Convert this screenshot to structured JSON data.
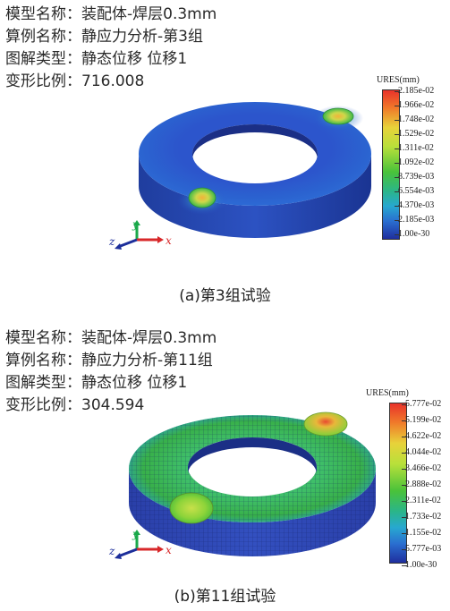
{
  "panel_a": {
    "info": [
      "模型名称：装配体-焊层0.3mm",
      "算例名称：静应力分析-第3组",
      "图解类型：静态位移 位移1",
      "变形比例：716.008"
    ],
    "legend_title": "URES(mm)",
    "legend_ticks": [
      "2.185e-02",
      "1.966e-02",
      "1.748e-02",
      "1.529e-02",
      "1.311e-02",
      "1.092e-02",
      "8.739e-03",
      "6.554e-03",
      "4.370e-03",
      "2.185e-03",
      "1.00e-30"
    ],
    "caption": "(a)第3组试验",
    "axis_labels": {
      "x": "x",
      "y": "y",
      "z": "z"
    }
  },
  "panel_b": {
    "info": [
      "模型名称：装配体-焊层0.3mm",
      "算例名称：静应力分析-第11组",
      "图解类型：静态位移 位移1",
      "变形比例：304.594"
    ],
    "legend_title": "URES(mm)",
    "legend_ticks": [
      "5.777e-02",
      "5.199e-02",
      "4.622e-02",
      "4.044e-02",
      "3.466e-02",
      "2.888e-02",
      "2.311e-02",
      "1.733e-02",
      "1.155e-02",
      "5.777e-03",
      "1.00e-30"
    ],
    "caption": "(b)第11组试验",
    "axis_labels": {
      "x": "x",
      "y": "y",
      "z": "z"
    }
  },
  "colors": {
    "scale_top": "#e8322a",
    "scale_mid": "#49c23a",
    "scale_bottom": "#1f2e9e"
  }
}
